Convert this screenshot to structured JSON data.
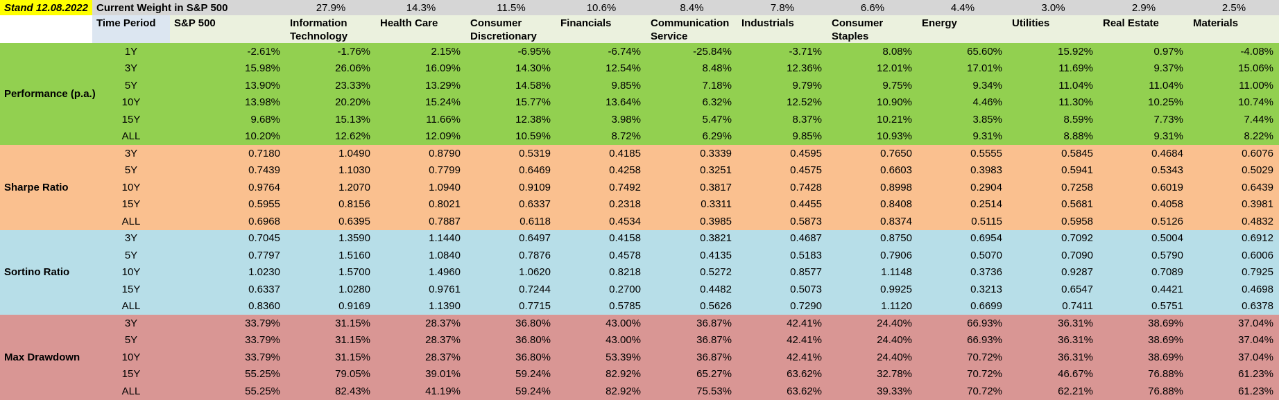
{
  "stand": {
    "label": "Stand 12.08.2022"
  },
  "colors": {
    "stand_bg": "#FFFF00",
    "weight_row_bg": "#D6D6D6",
    "period_header_bg": "#DCE6F1",
    "sector_header_bg": "#EBF1DE"
  },
  "header": {
    "weight_title": "Current Weight in S&P 500",
    "time_period_label": "Time Period",
    "columns": [
      "S&P 500",
      "Information Technology",
      "Health Care",
      "Consumer Discretionary",
      "Financials",
      "Communication Service",
      "Industrials",
      "Consumer Staples",
      "Energy",
      "Utilities",
      "Real Estate",
      "Materials"
    ],
    "weights": [
      "27.9%",
      "14.3%",
      "11.5%",
      "10.6%",
      "8.4%",
      "7.8%",
      "6.6%",
      "4.4%",
      "3.0%",
      "2.9%",
      "2.5%"
    ]
  },
  "sections": [
    {
      "label": "Performance (p.a.)",
      "color": "#92D050",
      "rows": [
        {
          "period": "1Y",
          "values": [
            "-2.61%",
            "-1.76%",
            "2.15%",
            "-6.95%",
            "-6.74%",
            "-25.84%",
            "-3.71%",
            "8.08%",
            "65.60%",
            "15.92%",
            "0.97%",
            "-4.08%"
          ]
        },
        {
          "period": "3Y",
          "values": [
            "15.98%",
            "26.06%",
            "16.09%",
            "14.30%",
            "12.54%",
            "8.48%",
            "12.36%",
            "12.01%",
            "17.01%",
            "11.69%",
            "9.37%",
            "15.06%"
          ]
        },
        {
          "period": "5Y",
          "values": [
            "13.90%",
            "23.33%",
            "13.29%",
            "14.58%",
            "9.85%",
            "7.18%",
            "9.79%",
            "9.75%",
            "9.34%",
            "11.04%",
            "11.04%",
            "11.00%"
          ]
        },
        {
          "period": "10Y",
          "values": [
            "13.98%",
            "20.20%",
            "15.24%",
            "15.77%",
            "13.64%",
            "6.32%",
            "12.52%",
            "10.90%",
            "4.46%",
            "11.30%",
            "10.25%",
            "10.74%"
          ]
        },
        {
          "period": "15Y",
          "values": [
            "9.68%",
            "15.13%",
            "11.66%",
            "12.38%",
            "3.98%",
            "5.47%",
            "8.37%",
            "10.21%",
            "3.85%",
            "8.59%",
            "7.73%",
            "7.44%"
          ]
        },
        {
          "period": "ALL",
          "values": [
            "10.20%",
            "12.62%",
            "12.09%",
            "10.59%",
            "8.72%",
            "6.29%",
            "9.85%",
            "10.93%",
            "9.31%",
            "8.88%",
            "9.31%",
            "8.22%"
          ]
        }
      ]
    },
    {
      "label": "Sharpe Ratio",
      "color": "#FAC08F",
      "rows": [
        {
          "period": "3Y",
          "values": [
            "0.7180",
            "1.0490",
            "0.8790",
            "0.5319",
            "0.4185",
            "0.3339",
            "0.4595",
            "0.7650",
            "0.5555",
            "0.5845",
            "0.4684",
            "0.6076"
          ]
        },
        {
          "period": "5Y",
          "values": [
            "0.7439",
            "1.1030",
            "0.7799",
            "0.6469",
            "0.4258",
            "0.3251",
            "0.4575",
            "0.6603",
            "0.3983",
            "0.5941",
            "0.5343",
            "0.5029"
          ]
        },
        {
          "period": "10Y",
          "values": [
            "0.9764",
            "1.2070",
            "1.0940",
            "0.9109",
            "0.7492",
            "0.3817",
            "0.7428",
            "0.8998",
            "0.2904",
            "0.7258",
            "0.6019",
            "0.6439"
          ]
        },
        {
          "period": "15Y",
          "values": [
            "0.5955",
            "0.8156",
            "0.8021",
            "0.6337",
            "0.2318",
            "0.3311",
            "0.4455",
            "0.8408",
            "0.2514",
            "0.5681",
            "0.4058",
            "0.3981"
          ]
        },
        {
          "period": "ALL",
          "values": [
            "0.6968",
            "0.6395",
            "0.7887",
            "0.6118",
            "0.4534",
            "0.3985",
            "0.5873",
            "0.8374",
            "0.5115",
            "0.5958",
            "0.5126",
            "0.4832"
          ]
        }
      ]
    },
    {
      "label": "Sortino Ratio",
      "color": "#B7DEE8",
      "rows": [
        {
          "period": "3Y",
          "values": [
            "0.7045",
            "1.3590",
            "1.1440",
            "0.6497",
            "0.4158",
            "0.3821",
            "0.4687",
            "0.8750",
            "0.6954",
            "0.7092",
            "0.5004",
            "0.6912"
          ]
        },
        {
          "period": "5Y",
          "values": [
            "0.7797",
            "1.5160",
            "1.0840",
            "0.7876",
            "0.4578",
            "0.4135",
            "0.5183",
            "0.7906",
            "0.5070",
            "0.7090",
            "0.5790",
            "0.6006"
          ]
        },
        {
          "period": "10Y",
          "values": [
            "1.0230",
            "1.5700",
            "1.4960",
            "1.0620",
            "0.8218",
            "0.5272",
            "0.8577",
            "1.1148",
            "0.3736",
            "0.9287",
            "0.7089",
            "0.7925"
          ]
        },
        {
          "period": "15Y",
          "values": [
            "0.6337",
            "1.0280",
            "0.9761",
            "0.7244",
            "0.2700",
            "0.4482",
            "0.5073",
            "0.9925",
            "0.3213",
            "0.6547",
            "0.4421",
            "0.4698"
          ]
        },
        {
          "period": "ALL",
          "values": [
            "0.8360",
            "0.9169",
            "1.1390",
            "0.7715",
            "0.5785",
            "0.5626",
            "0.7290",
            "1.1120",
            "0.6699",
            "0.7411",
            "0.5751",
            "0.6378"
          ]
        }
      ]
    },
    {
      "label": "Max Drawdown",
      "color": "#D99694",
      "rows": [
        {
          "period": "3Y",
          "values": [
            "33.79%",
            "31.15%",
            "28.37%",
            "36.80%",
            "43.00%",
            "36.87%",
            "42.41%",
            "24.40%",
            "66.93%",
            "36.31%",
            "38.69%",
            "37.04%"
          ]
        },
        {
          "period": "5Y",
          "values": [
            "33.79%",
            "31.15%",
            "28.37%",
            "36.80%",
            "43.00%",
            "36.87%",
            "42.41%",
            "24.40%",
            "66.93%",
            "36.31%",
            "38.69%",
            "37.04%"
          ]
        },
        {
          "period": "10Y",
          "values": [
            "33.79%",
            "31.15%",
            "28.37%",
            "36.80%",
            "53.39%",
            "36.87%",
            "42.41%",
            "24.40%",
            "70.72%",
            "36.31%",
            "38.69%",
            "37.04%"
          ]
        },
        {
          "period": "15Y",
          "values": [
            "55.25%",
            "79.05%",
            "39.01%",
            "59.24%",
            "82.92%",
            "65.27%",
            "63.62%",
            "32.78%",
            "70.72%",
            "46.67%",
            "76.88%",
            "61.23%"
          ]
        },
        {
          "period": "ALL",
          "values": [
            "55.25%",
            "82.43%",
            "41.19%",
            "59.24%",
            "82.92%",
            "75.53%",
            "63.62%",
            "39.33%",
            "70.72%",
            "62.21%",
            "76.88%",
            "61.23%"
          ]
        }
      ]
    }
  ]
}
